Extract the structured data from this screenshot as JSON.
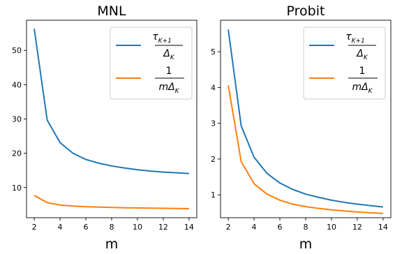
{
  "chart_data": [
    {
      "type": "line",
      "title": "MNL",
      "xlabel": "m",
      "ylabel": "",
      "xlim": [
        1.4,
        14.6
      ],
      "ylim": [
        1.2,
        58.8
      ],
      "xticks": [
        2,
        4,
        6,
        8,
        10,
        12,
        14
      ],
      "yticks": [
        10,
        20,
        30,
        40,
        50
      ],
      "x": [
        2,
        3,
        4,
        5,
        6,
        7,
        8,
        9,
        10,
        11,
        12,
        13,
        14
      ],
      "legend_position": "top-right",
      "series": [
        {
          "legend_label": "τ_{K+1} / Δ_K",
          "color": "#1f77b4",
          "values": [
            56.3,
            29.7,
            23.1,
            20.0,
            18.2,
            17.1,
            16.3,
            15.7,
            15.2,
            14.8,
            14.5,
            14.3,
            14.1
          ]
        },
        {
          "legend_label": "1 / (m Δ_K)",
          "color": "#ff7f0e",
          "values": [
            7.7,
            5.6,
            4.9,
            4.6,
            4.4,
            4.3,
            4.2,
            4.1,
            4.05,
            4.0,
            3.95,
            3.9,
            3.85
          ]
        }
      ]
    },
    {
      "type": "line",
      "title": "Probit",
      "xlabel": "m",
      "ylabel": "",
      "xlim": [
        1.4,
        14.6
      ],
      "ylim": [
        0.36,
        5.88
      ],
      "xticks": [
        2,
        4,
        6,
        8,
        10,
        12,
        14
      ],
      "yticks": [
        1,
        2,
        3,
        4,
        5
      ],
      "x": [
        2,
        3,
        4,
        5,
        6,
        7,
        8,
        9,
        10,
        11,
        12,
        13,
        14
      ],
      "legend_position": "top-right",
      "series": [
        {
          "legend_label": "τ_{K+1} / Δ_K",
          "color": "#1f77b4",
          "values": [
            5.62,
            2.93,
            2.05,
            1.6,
            1.33,
            1.15,
            1.02,
            0.93,
            0.85,
            0.79,
            0.74,
            0.7,
            0.66
          ]
        },
        {
          "legend_label": "1 / (m Δ_K)",
          "color": "#ff7f0e",
          "values": [
            4.06,
            1.93,
            1.31,
            1.02,
            0.85,
            0.74,
            0.67,
            0.62,
            0.58,
            0.55,
            0.52,
            0.5,
            0.48
          ]
        }
      ]
    }
  ]
}
